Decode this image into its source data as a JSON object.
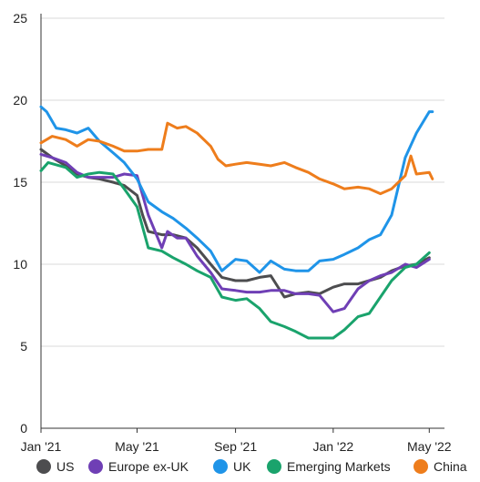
{
  "chart_data": {
    "type": "line",
    "title": "",
    "xlabel": "",
    "ylabel": "",
    "ylim": [
      0,
      25
    ],
    "yticks": [
      0,
      5,
      10,
      15,
      20,
      25
    ],
    "xlim": [
      "2021-01-01",
      "2022-05-20"
    ],
    "xticks": [
      {
        "date": "2021-01-01",
        "label": "Jan '21"
      },
      {
        "date": "2021-05-01",
        "label": "May '21"
      },
      {
        "date": "2021-09-01",
        "label": "Sep '21"
      },
      {
        "date": "2022-01-01",
        "label": "Jan '22"
      },
      {
        "date": "2022-05-01",
        "label": "May '22"
      }
    ],
    "grid": "horizontal",
    "legend_position": "bottom",
    "series": [
      {
        "name": "US",
        "color": "#4d4d4f",
        "points": [
          [
            "2021-01-01",
            17.0
          ],
          [
            "2021-01-15",
            16.5
          ],
          [
            "2021-02-01",
            16.0
          ],
          [
            "2021-02-15",
            15.5
          ],
          [
            "2021-03-01",
            15.3
          ],
          [
            "2021-03-15",
            15.2
          ],
          [
            "2021-04-01",
            15.0
          ],
          [
            "2021-04-15",
            14.8
          ],
          [
            "2021-05-01",
            14.2
          ],
          [
            "2021-05-08",
            13.0
          ],
          [
            "2021-05-15",
            12.0
          ],
          [
            "2021-06-01",
            11.8
          ],
          [
            "2021-06-15",
            11.8
          ],
          [
            "2021-07-01",
            11.6
          ],
          [
            "2021-07-15",
            11.0
          ],
          [
            "2021-08-01",
            10.0
          ],
          [
            "2021-08-15",
            9.2
          ],
          [
            "2021-09-01",
            9.0
          ],
          [
            "2021-09-15",
            9.0
          ],
          [
            "2021-10-01",
            9.2
          ],
          [
            "2021-10-15",
            9.3
          ],
          [
            "2021-11-01",
            8.0
          ],
          [
            "2021-11-15",
            8.2
          ],
          [
            "2021-12-01",
            8.3
          ],
          [
            "2021-12-15",
            8.2
          ],
          [
            "2022-01-01",
            8.6
          ],
          [
            "2022-01-15",
            8.8
          ],
          [
            "2022-02-01",
            8.8
          ],
          [
            "2022-02-15",
            9.0
          ],
          [
            "2022-03-01",
            9.2
          ],
          [
            "2022-03-15",
            9.6
          ],
          [
            "2022-04-01",
            9.9
          ],
          [
            "2022-04-15",
            10.0
          ],
          [
            "2022-05-01",
            10.4
          ]
        ]
      },
      {
        "name": "Europe ex-UK",
        "color": "#6f3fb5",
        "points": [
          [
            "2021-01-01",
            16.7
          ],
          [
            "2021-01-15",
            16.5
          ],
          [
            "2021-02-01",
            16.2
          ],
          [
            "2021-02-15",
            15.6
          ],
          [
            "2021-03-01",
            15.3
          ],
          [
            "2021-03-15",
            15.3
          ],
          [
            "2021-04-01",
            15.3
          ],
          [
            "2021-04-15",
            15.5
          ],
          [
            "2021-05-01",
            15.4
          ],
          [
            "2021-05-15",
            13.0
          ],
          [
            "2021-06-01",
            11.0
          ],
          [
            "2021-06-08",
            12.0
          ],
          [
            "2021-06-20",
            11.6
          ],
          [
            "2021-07-01",
            11.6
          ],
          [
            "2021-07-15",
            10.5
          ],
          [
            "2021-08-01",
            9.5
          ],
          [
            "2021-08-15",
            8.5
          ],
          [
            "2021-09-01",
            8.4
          ],
          [
            "2021-09-15",
            8.3
          ],
          [
            "2021-10-01",
            8.3
          ],
          [
            "2021-10-15",
            8.4
          ],
          [
            "2021-11-01",
            8.4
          ],
          [
            "2021-11-15",
            8.2
          ],
          [
            "2021-12-01",
            8.2
          ],
          [
            "2021-12-15",
            8.1
          ],
          [
            "2022-01-01",
            7.1
          ],
          [
            "2022-01-15",
            7.3
          ],
          [
            "2022-02-01",
            8.5
          ],
          [
            "2022-02-15",
            9.0
          ],
          [
            "2022-03-01",
            9.3
          ],
          [
            "2022-03-15",
            9.5
          ],
          [
            "2022-04-01",
            10.0
          ],
          [
            "2022-04-15",
            9.8
          ],
          [
            "2022-05-01",
            10.3
          ]
        ]
      },
      {
        "name": "UK",
        "color": "#1f94e8",
        "points": [
          [
            "2021-01-01",
            19.6
          ],
          [
            "2021-01-08",
            19.3
          ],
          [
            "2021-01-20",
            18.3
          ],
          [
            "2021-02-01",
            18.2
          ],
          [
            "2021-02-15",
            18.0
          ],
          [
            "2021-03-01",
            18.3
          ],
          [
            "2021-03-15",
            17.5
          ],
          [
            "2021-04-01",
            16.8
          ],
          [
            "2021-04-15",
            16.2
          ],
          [
            "2021-05-01",
            15.2
          ],
          [
            "2021-05-15",
            13.8
          ],
          [
            "2021-06-01",
            13.2
          ],
          [
            "2021-06-15",
            12.8
          ],
          [
            "2021-07-01",
            12.2
          ],
          [
            "2021-07-15",
            11.6
          ],
          [
            "2021-08-01",
            10.8
          ],
          [
            "2021-08-15",
            9.6
          ],
          [
            "2021-09-01",
            10.3
          ],
          [
            "2021-09-15",
            10.2
          ],
          [
            "2021-10-01",
            9.5
          ],
          [
            "2021-10-15",
            10.2
          ],
          [
            "2021-11-01",
            9.7
          ],
          [
            "2021-11-15",
            9.6
          ],
          [
            "2021-12-01",
            9.6
          ],
          [
            "2021-12-15",
            10.2
          ],
          [
            "2022-01-01",
            10.3
          ],
          [
            "2022-01-15",
            10.6
          ],
          [
            "2022-02-01",
            11.0
          ],
          [
            "2022-02-15",
            11.5
          ],
          [
            "2022-03-01",
            11.8
          ],
          [
            "2022-03-15",
            13.0
          ],
          [
            "2022-04-01",
            16.5
          ],
          [
            "2022-04-15",
            18.0
          ],
          [
            "2022-05-01",
            19.3
          ],
          [
            "2022-05-05",
            19.3
          ]
        ]
      },
      {
        "name": "Emerging Markets",
        "color": "#1aa36c",
        "points": [
          [
            "2021-01-01",
            15.7
          ],
          [
            "2021-01-10",
            16.2
          ],
          [
            "2021-02-01",
            15.9
          ],
          [
            "2021-02-15",
            15.3
          ],
          [
            "2021-03-01",
            15.5
          ],
          [
            "2021-03-15",
            15.6
          ],
          [
            "2021-04-01",
            15.5
          ],
          [
            "2021-04-15",
            14.6
          ],
          [
            "2021-05-01",
            13.5
          ],
          [
            "2021-05-15",
            11.0
          ],
          [
            "2021-06-01",
            10.8
          ],
          [
            "2021-06-15",
            10.4
          ],
          [
            "2021-07-01",
            10.0
          ],
          [
            "2021-07-15",
            9.6
          ],
          [
            "2021-08-01",
            9.2
          ],
          [
            "2021-08-15",
            8.0
          ],
          [
            "2021-09-01",
            7.8
          ],
          [
            "2021-09-15",
            7.9
          ],
          [
            "2021-10-01",
            7.3
          ],
          [
            "2021-10-15",
            6.5
          ],
          [
            "2021-11-01",
            6.2
          ],
          [
            "2021-11-15",
            5.9
          ],
          [
            "2021-12-01",
            5.5
          ],
          [
            "2021-12-15",
            5.5
          ],
          [
            "2022-01-01",
            5.5
          ],
          [
            "2022-01-15",
            6.0
          ],
          [
            "2022-02-01",
            6.8
          ],
          [
            "2022-02-15",
            7.0
          ],
          [
            "2022-03-01",
            8.0
          ],
          [
            "2022-03-15",
            9.0
          ],
          [
            "2022-04-01",
            9.8
          ],
          [
            "2022-04-15",
            10.0
          ],
          [
            "2022-05-01",
            10.7
          ]
        ]
      },
      {
        "name": "China",
        "color": "#ee7d1c",
        "points": [
          [
            "2021-01-01",
            17.4
          ],
          [
            "2021-01-15",
            17.8
          ],
          [
            "2021-02-01",
            17.6
          ],
          [
            "2021-02-15",
            17.2
          ],
          [
            "2021-03-01",
            17.6
          ],
          [
            "2021-03-15",
            17.5
          ],
          [
            "2021-04-01",
            17.2
          ],
          [
            "2021-04-15",
            16.9
          ],
          [
            "2021-05-01",
            16.9
          ],
          [
            "2021-05-15",
            17.0
          ],
          [
            "2021-06-01",
            17.0
          ],
          [
            "2021-06-08",
            18.6
          ],
          [
            "2021-06-20",
            18.3
          ],
          [
            "2021-07-01",
            18.4
          ],
          [
            "2021-07-15",
            18.0
          ],
          [
            "2021-08-01",
            17.2
          ],
          [
            "2021-08-10",
            16.4
          ],
          [
            "2021-08-20",
            16.0
          ],
          [
            "2021-09-01",
            16.1
          ],
          [
            "2021-09-15",
            16.2
          ],
          [
            "2021-10-01",
            16.1
          ],
          [
            "2021-10-15",
            16.0
          ],
          [
            "2021-11-01",
            16.2
          ],
          [
            "2021-11-15",
            15.9
          ],
          [
            "2021-12-01",
            15.6
          ],
          [
            "2021-12-15",
            15.2
          ],
          [
            "2022-01-01",
            14.9
          ],
          [
            "2022-01-15",
            14.6
          ],
          [
            "2022-02-01",
            14.7
          ],
          [
            "2022-02-15",
            14.6
          ],
          [
            "2022-03-01",
            14.3
          ],
          [
            "2022-03-15",
            14.6
          ],
          [
            "2022-04-01",
            15.4
          ],
          [
            "2022-04-08",
            16.6
          ],
          [
            "2022-04-15",
            15.5
          ],
          [
            "2022-05-01",
            15.6
          ],
          [
            "2022-05-05",
            15.2
          ]
        ]
      }
    ]
  }
}
